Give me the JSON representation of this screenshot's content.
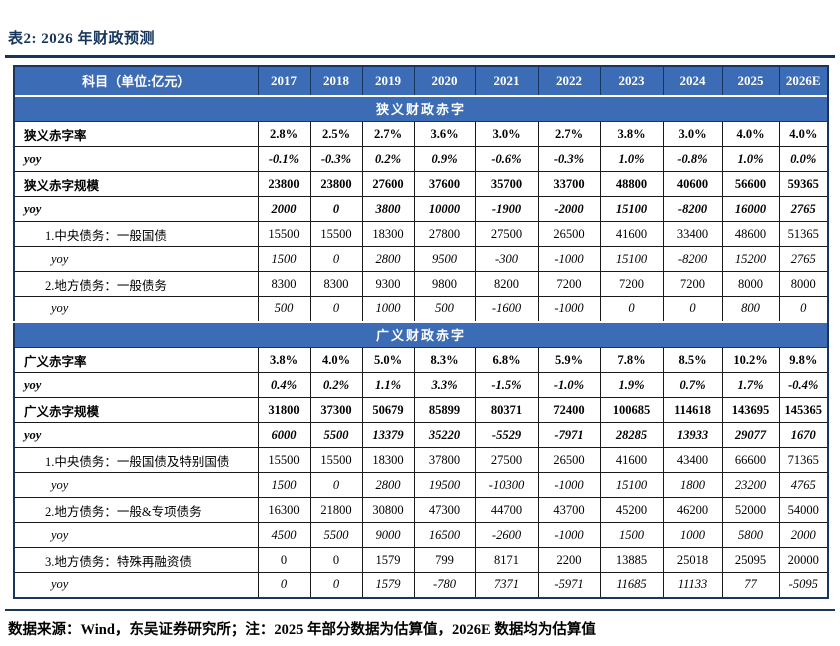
{
  "title": "表2:  2026 年财政预测",
  "footer": "数据来源：Wind，东吴证券研究所；注：2025 年部分数据为估算值，2026E 数据均为估算值",
  "colors": {
    "header_blue": "#3B6CB5",
    "border_navy": "#17365D"
  },
  "table": {
    "header": [
      "科目（单位:亿元）",
      "2017",
      "2018",
      "2019",
      "2020",
      "2021",
      "2022",
      "2023",
      "2024",
      "2025",
      "2026E"
    ],
    "sections": [
      {
        "band": "狭义财政赤字",
        "rows": [
          {
            "label": "狭义赤字率",
            "style": "bold",
            "indent": 0,
            "values": [
              "2.8%",
              "2.5%",
              "2.7%",
              "3.6%",
              "3.0%",
              "2.7%",
              "3.8%",
              "3.0%",
              "4.0%",
              "4.0%"
            ]
          },
          {
            "label": "yoy",
            "style": "bold-italic",
            "indent": 0,
            "values": [
              "-0.1%",
              "-0.3%",
              "0.2%",
              "0.9%",
              "-0.6%",
              "-0.3%",
              "1.0%",
              "-0.8%",
              "1.0%",
              "0.0%"
            ]
          },
          {
            "label": "狭义赤字规模",
            "style": "bold",
            "indent": 0,
            "values": [
              "23800",
              "23800",
              "27600",
              "37600",
              "35700",
              "33700",
              "48800",
              "40600",
              "56600",
              "59365"
            ]
          },
          {
            "label": "yoy",
            "style": "bold-italic",
            "indent": 0,
            "values": [
              "2000",
              "0",
              "3800",
              "10000",
              "-1900",
              "-2000",
              "15100",
              "-8200",
              "16000",
              "2765"
            ]
          },
          {
            "label": "1.中央债务：一般国债",
            "style": "plain",
            "indent": 1,
            "values": [
              "15500",
              "15500",
              "18300",
              "27800",
              "27500",
              "26500",
              "41600",
              "33400",
              "48600",
              "51365"
            ]
          },
          {
            "label": "yoy",
            "style": "italic",
            "indent": 2,
            "values": [
              "1500",
              "0",
              "2800",
              "9500",
              "-300",
              "-1000",
              "15100",
              "-8200",
              "15200",
              "2765"
            ]
          },
          {
            "label": "2.地方债务：一般债务",
            "style": "plain",
            "indent": 1,
            "values": [
              "8300",
              "8300",
              "9300",
              "9800",
              "8200",
              "7200",
              "7200",
              "7200",
              "8000",
              "8000"
            ]
          },
          {
            "label": "yoy",
            "style": "italic",
            "indent": 2,
            "values": [
              "500",
              "0",
              "1000",
              "500",
              "-1600",
              "-1000",
              "0",
              "0",
              "800",
              "0"
            ]
          }
        ]
      },
      {
        "band": "广义财政赤字",
        "rows": [
          {
            "label": "广义赤字率",
            "style": "bold",
            "indent": 0,
            "values": [
              "3.8%",
              "4.0%",
              "5.0%",
              "8.3%",
              "6.8%",
              "5.9%",
              "7.8%",
              "8.5%",
              "10.2%",
              "9.8%"
            ]
          },
          {
            "label": "yoy",
            "style": "bold-italic",
            "indent": 0,
            "values": [
              "0.4%",
              "0.2%",
              "1.1%",
              "3.3%",
              "-1.5%",
              "-1.0%",
              "1.9%",
              "0.7%",
              "1.7%",
              "-0.4%"
            ]
          },
          {
            "label": "广义赤字规模",
            "style": "bold",
            "indent": 0,
            "values": [
              "31800",
              "37300",
              "50679",
              "85899",
              "80371",
              "72400",
              "100685",
              "114618",
              "143695",
              "145365"
            ]
          },
          {
            "label": "yoy",
            "style": "bold-italic",
            "indent": 0,
            "values": [
              "6000",
              "5500",
              "13379",
              "35220",
              "-5529",
              "-7971",
              "28285",
              "13933",
              "29077",
              "1670"
            ]
          },
          {
            "label": "1.中央债务：一般国债及特别国债",
            "style": "plain",
            "indent": 1,
            "values": [
              "15500",
              "15500",
              "18300",
              "37800",
              "27500",
              "26500",
              "41600",
              "43400",
              "66600",
              "71365"
            ]
          },
          {
            "label": "yoy",
            "style": "italic",
            "indent": 2,
            "values": [
              "1500",
              "0",
              "2800",
              "19500",
              "-10300",
              "-1000",
              "15100",
              "1800",
              "23200",
              "4765"
            ]
          },
          {
            "label": "2.地方债务：一般&专项债务",
            "style": "plain",
            "indent": 1,
            "values": [
              "16300",
              "21800",
              "30800",
              "47300",
              "44700",
              "43700",
              "45200",
              "46200",
              "52000",
              "54000"
            ]
          },
          {
            "label": "yoy",
            "style": "italic",
            "indent": 2,
            "values": [
              "4500",
              "5500",
              "9000",
              "16500",
              "-2600",
              "-1000",
              "1500",
              "1000",
              "5800",
              "2000"
            ]
          },
          {
            "label": "3.地方债务：特殊再融资债",
            "style": "plain",
            "indent": 1,
            "values": [
              "0",
              "0",
              "1579",
              "799",
              "8171",
              "2200",
              "13885",
              "25018",
              "25095",
              "20000"
            ]
          },
          {
            "label": "yoy",
            "style": "italic",
            "indent": 2,
            "values": [
              "0",
              "0",
              "1579",
              "-780",
              "7371",
              "-5971",
              "11685",
              "11133",
              "77",
              "-5095"
            ]
          }
        ]
      }
    ]
  }
}
